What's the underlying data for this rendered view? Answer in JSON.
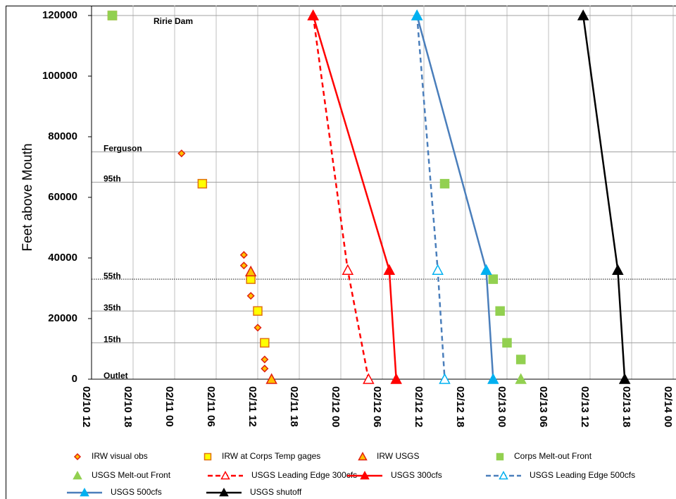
{
  "chart_data": {
    "type": "scatter",
    "y_label": "Feet above Mouth",
    "xlim": [
      "02/10 12",
      "02/14 00"
    ],
    "xticks": [
      "02/10 12",
      "02/10 18",
      "02/11 00",
      "02/11 06",
      "02/11 12",
      "02/11 18",
      "02/12 00",
      "02/12 06",
      "02/12 12",
      "02/12 18",
      "02/13 00",
      "02/13 06",
      "02/13 12",
      "02/13 18",
      "02/14 00"
    ],
    "ylim": [
      0,
      120000
    ],
    "yticks": [
      0,
      20000,
      40000,
      60000,
      80000,
      100000,
      120000
    ],
    "grid": "x",
    "legend": "bottom",
    "reference_lines": [
      {
        "label": "Ririe Dam",
        "value": 120000,
        "dotted": false
      },
      {
        "label": "Ferguson",
        "value": 75000,
        "dotted": false
      },
      {
        "label": "95th",
        "value": 65000,
        "dotted": false
      },
      {
        "label": "55th",
        "value": 33000,
        "dotted": true
      },
      {
        "label": "35th",
        "value": 22500,
        "dotted": false
      },
      {
        "label": "15th",
        "value": 12000,
        "dotted": false
      },
      {
        "label": "Outlet",
        "value": 0,
        "dotted": false
      }
    ],
    "series": [
      {
        "name": "IRW visual obs",
        "marker": "diamond",
        "marker_fill": "#ffc000",
        "marker_edge": "#e02010",
        "x": [
          "02/11 01",
          "02/11 10",
          "02/11 10",
          "02/11 11",
          "02/11 12",
          "02/11 13",
          "02/11 13"
        ],
        "values": [
          74500,
          41000,
          37500,
          27500,
          17000,
          6500,
          3500
        ]
      },
      {
        "name": "IRW at Corps Temp gages",
        "marker": "square",
        "marker_fill": "#ffff00",
        "marker_edge": "#e07010",
        "x": [
          "02/10 15",
          "02/11 04",
          "02/11 11",
          "02/11 12",
          "02/11 13"
        ],
        "values": [
          120000,
          64500,
          33000,
          22500,
          12000
        ]
      },
      {
        "name": "IRW USGS",
        "marker": "triangle",
        "marker_fill": "#ffc000",
        "marker_edge": "#e02010",
        "x": [
          "02/11 11",
          "02/11 14"
        ],
        "values": [
          35500,
          0
        ]
      },
      {
        "name": "Corps Melt-out Front",
        "marker": "square",
        "marker_fill": "#92d050",
        "marker_edge": "#92d050",
        "x": [
          "02/10 15",
          "02/12 15",
          "02/12 22",
          "02/12 23",
          "02/13 00",
          "02/13 02"
        ],
        "values": [
          120000,
          64500,
          33000,
          22500,
          12000,
          6500
        ]
      },
      {
        "name": "USGS Melt-out Front",
        "marker": "triangle",
        "marker_fill": "#92d050",
        "marker_edge": "#92d050",
        "x": [
          "02/13 02"
        ],
        "values": [
          0
        ]
      },
      {
        "name": "USGS Leading Edge 300cfs",
        "marker": "triangle",
        "marker_fill": "#ffffff",
        "marker_edge": "#ff0000",
        "line_color": "#ff0000",
        "dashed": true,
        "x": [
          "02/11 20",
          "02/12 01",
          "02/12 04"
        ],
        "values": [
          120000,
          36000,
          0
        ]
      },
      {
        "name": "USGS 300cfs",
        "marker": "triangle",
        "marker_fill": "#ff0000",
        "marker_edge": "#ff0000",
        "line_color": "#ff0000",
        "dashed": false,
        "x": [
          "02/11 20",
          "02/12 07",
          "02/12 08"
        ],
        "values": [
          120000,
          36000,
          0
        ]
      },
      {
        "name": "USGS Leading Edge 500cfs",
        "marker": "triangle",
        "marker_fill": "#ffffff",
        "marker_edge": "#00b0f0",
        "line_color": "#4a7ebb",
        "dashed": true,
        "x": [
          "02/12 11",
          "02/12 14",
          "02/12 15"
        ],
        "values": [
          120000,
          36000,
          0
        ]
      },
      {
        "name": "USGS 500cfs",
        "marker": "triangle",
        "marker_fill": "#00b0f0",
        "marker_edge": "#00b0f0",
        "line_color": "#4a7ebb",
        "dashed": false,
        "x": [
          "02/12 11",
          "02/12 21",
          "02/12 22"
        ],
        "values": [
          120000,
          36000,
          0
        ]
      },
      {
        "name": "USGS shutoff",
        "marker": "triangle",
        "marker_fill": "#000000",
        "marker_edge": "#000000",
        "line_color": "#000000",
        "dashed": false,
        "x": [
          "02/13 11",
          "02/13 16",
          "02/13 17"
        ],
        "values": [
          120000,
          36000,
          0
        ]
      }
    ]
  }
}
